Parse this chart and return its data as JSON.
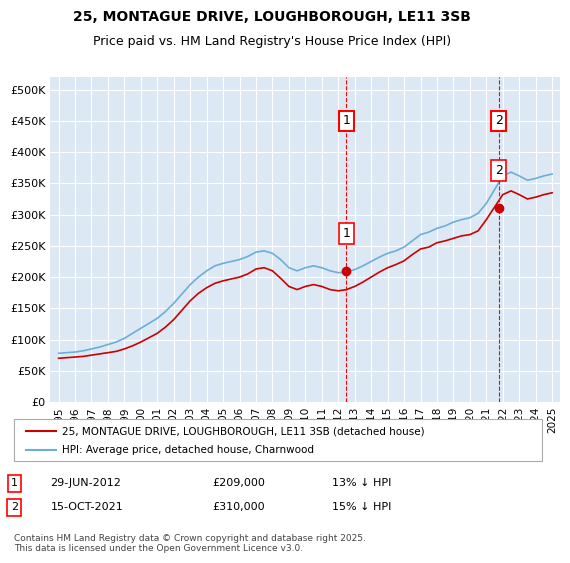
{
  "title1": "25, MONTAGUE DRIVE, LOUGHBOROUGH, LE11 3SB",
  "title2": "Price paid vs. HM Land Registry's House Price Index (HPI)",
  "ylabel": "",
  "background_color": "#dce9f5",
  "plot_bg_color": "#dce9f5",
  "hpi_color": "#6baed6",
  "price_color": "#cc0000",
  "annotation1": {
    "label": "1",
    "date": "29-JUN-2012",
    "price": 209000,
    "text": "29-JUN-2012     £209,000     13% ↓ HPI"
  },
  "annotation2": {
    "label": "2",
    "date": "15-OCT-2021",
    "price": 310000,
    "text": "15-OCT-2021     £310,000     15% ↓ HPI"
  },
  "legend_line1": "25, MONTAGUE DRIVE, LOUGHBOROUGH, LE11 3SB (detached house)",
  "legend_line2": "HPI: Average price, detached house, Charnwood",
  "footnote": "Contains HM Land Registry data © Crown copyright and database right 2025.\nThis data is licensed under the Open Government Licence v3.0.",
  "yticks": [
    0,
    50000,
    100000,
    150000,
    200000,
    250000,
    300000,
    350000,
    400000,
    450000,
    500000
  ],
  "ylim": [
    0,
    520000
  ],
  "xlim_start": 1994.5,
  "xlim_end": 2025.5,
  "hpi_years": [
    1995,
    1995.5,
    1996,
    1996.5,
    1997,
    1997.5,
    1998,
    1998.5,
    1999,
    1999.5,
    2000,
    2000.5,
    2001,
    2001.5,
    2002,
    2002.5,
    2003,
    2003.5,
    2004,
    2004.5,
    2005,
    2005.5,
    2006,
    2006.5,
    2007,
    2007.5,
    2008,
    2008.5,
    2009,
    2009.5,
    2010,
    2010.5,
    2011,
    2011.5,
    2012,
    2012.5,
    2013,
    2013.5,
    2014,
    2014.5,
    2015,
    2015.5,
    2016,
    2016.5,
    2017,
    2017.5,
    2018,
    2018.5,
    2019,
    2019.5,
    2020,
    2020.5,
    2021,
    2021.5,
    2022,
    2022.5,
    2023,
    2023.5,
    2024,
    2024.5,
    2025
  ],
  "hpi_values": [
    78000,
    79000,
    80000,
    82000,
    85000,
    88000,
    92000,
    96000,
    102000,
    110000,
    118000,
    126000,
    134000,
    145000,
    158000,
    173000,
    188000,
    200000,
    210000,
    218000,
    222000,
    225000,
    228000,
    233000,
    240000,
    242000,
    238000,
    228000,
    215000,
    210000,
    215000,
    218000,
    215000,
    210000,
    207000,
    208000,
    212000,
    218000,
    225000,
    232000,
    238000,
    242000,
    248000,
    258000,
    268000,
    272000,
    278000,
    282000,
    288000,
    292000,
    295000,
    302000,
    318000,
    340000,
    362000,
    368000,
    362000,
    355000,
    358000,
    362000,
    365000
  ],
  "price_years": [
    1995,
    1995.5,
    1996,
    1996.5,
    1997,
    1997.5,
    1998,
    1998.5,
    1999,
    1999.5,
    2000,
    2000.5,
    2001,
    2001.5,
    2002,
    2002.5,
    2003,
    2003.5,
    2004,
    2004.5,
    2005,
    2005.5,
    2006,
    2006.5,
    2007,
    2007.5,
    2008,
    2008.5,
    2009,
    2009.5,
    2010,
    2010.5,
    2011,
    2011.5,
    2012,
    2012.5,
    2013,
    2013.5,
    2014,
    2014.5,
    2015,
    2015.5,
    2016,
    2016.5,
    2017,
    2017.5,
    2018,
    2018.5,
    2019,
    2019.5,
    2020,
    2020.5,
    2021,
    2021.5,
    2022,
    2022.5,
    2023,
    2023.5,
    2024,
    2024.5,
    2025
  ],
  "price_values": [
    70000,
    71000,
    72000,
    73000,
    75000,
    77000,
    79000,
    81000,
    85000,
    90000,
    96000,
    103000,
    110000,
    120000,
    132000,
    147000,
    162000,
    174000,
    183000,
    190000,
    194000,
    197000,
    200000,
    205000,
    213000,
    215000,
    210000,
    198000,
    185000,
    180000,
    185000,
    188000,
    185000,
    180000,
    178000,
    180000,
    185000,
    192000,
    200000,
    208000,
    215000,
    220000,
    226000,
    236000,
    245000,
    248000,
    255000,
    258000,
    262000,
    266000,
    268000,
    274000,
    292000,
    312000,
    332000,
    338000,
    332000,
    325000,
    328000,
    332000,
    335000
  ],
  "ann1_x": 2012.5,
  "ann1_y": 209000,
  "ann2_x": 2021.75,
  "ann2_y": 310000,
  "xtick_years": [
    1995,
    1996,
    1997,
    1998,
    1999,
    2000,
    2001,
    2002,
    2003,
    2004,
    2005,
    2006,
    2007,
    2008,
    2009,
    2010,
    2011,
    2012,
    2013,
    2014,
    2015,
    2016,
    2017,
    2018,
    2019,
    2020,
    2021,
    2022,
    2023,
    2024,
    2025
  ]
}
